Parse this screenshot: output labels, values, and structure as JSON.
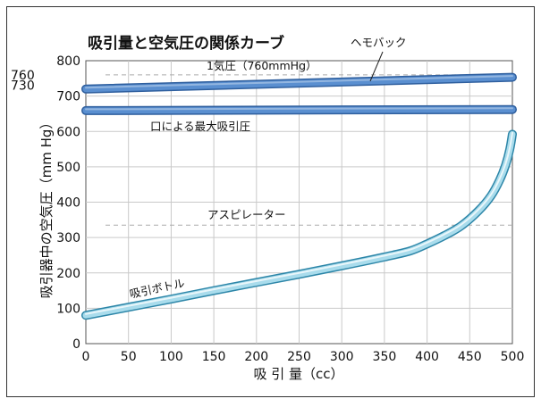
{
  "chart_data": {
    "type": "line",
    "title": "吸引量と空気圧の関係カーブ",
    "xlabel": "吸 引 量（cc）",
    "ylabel": "吸引器中の空気圧（mm Hg）",
    "xlim": [
      0,
      500
    ],
    "ylim": [
      0,
      800
    ],
    "x_ticks": [
      0,
      50,
      100,
      150,
      200,
      250,
      300,
      350,
      400,
      450,
      500
    ],
    "y_ticks": [
      0,
      100,
      200,
      300,
      400,
      500,
      600,
      700,
      800
    ],
    "extra_y_ticks": [
      760,
      730
    ],
    "grid": true,
    "colors": {
      "dark_band": "#5a8fd0",
      "dark_band_edge": "#2f5f9e",
      "light_band": "#a9dcec",
      "light_band_edge": "#2d86a8",
      "reference_line": "#aaaaaa"
    },
    "reference_lines": [
      {
        "label": "1気圧（760mmHg）",
        "y": 760
      },
      {
        "label": "アスピレーター",
        "y": 335
      }
    ],
    "series": [
      {
        "name": "ヘモバック",
        "style": "dark",
        "x": [
          0,
          500
        ],
        "y": [
          720,
          753
        ]
      },
      {
        "name": "口による最大吸引圧",
        "style": "dark",
        "x": [
          0,
          500
        ],
        "y": [
          659,
          662
        ]
      },
      {
        "name": "吸引ボトル",
        "style": "light",
        "x": [
          0,
          50,
          100,
          150,
          200,
          250,
          300,
          350,
          380,
          400,
          420,
          440,
          460,
          475,
          485,
          492,
          497,
          500
        ],
        "y": [
          80,
          103,
          126,
          150,
          173,
          196,
          220,
          245,
          262,
          282,
          305,
          333,
          375,
          418,
          462,
          505,
          550,
          592
        ]
      }
    ]
  }
}
